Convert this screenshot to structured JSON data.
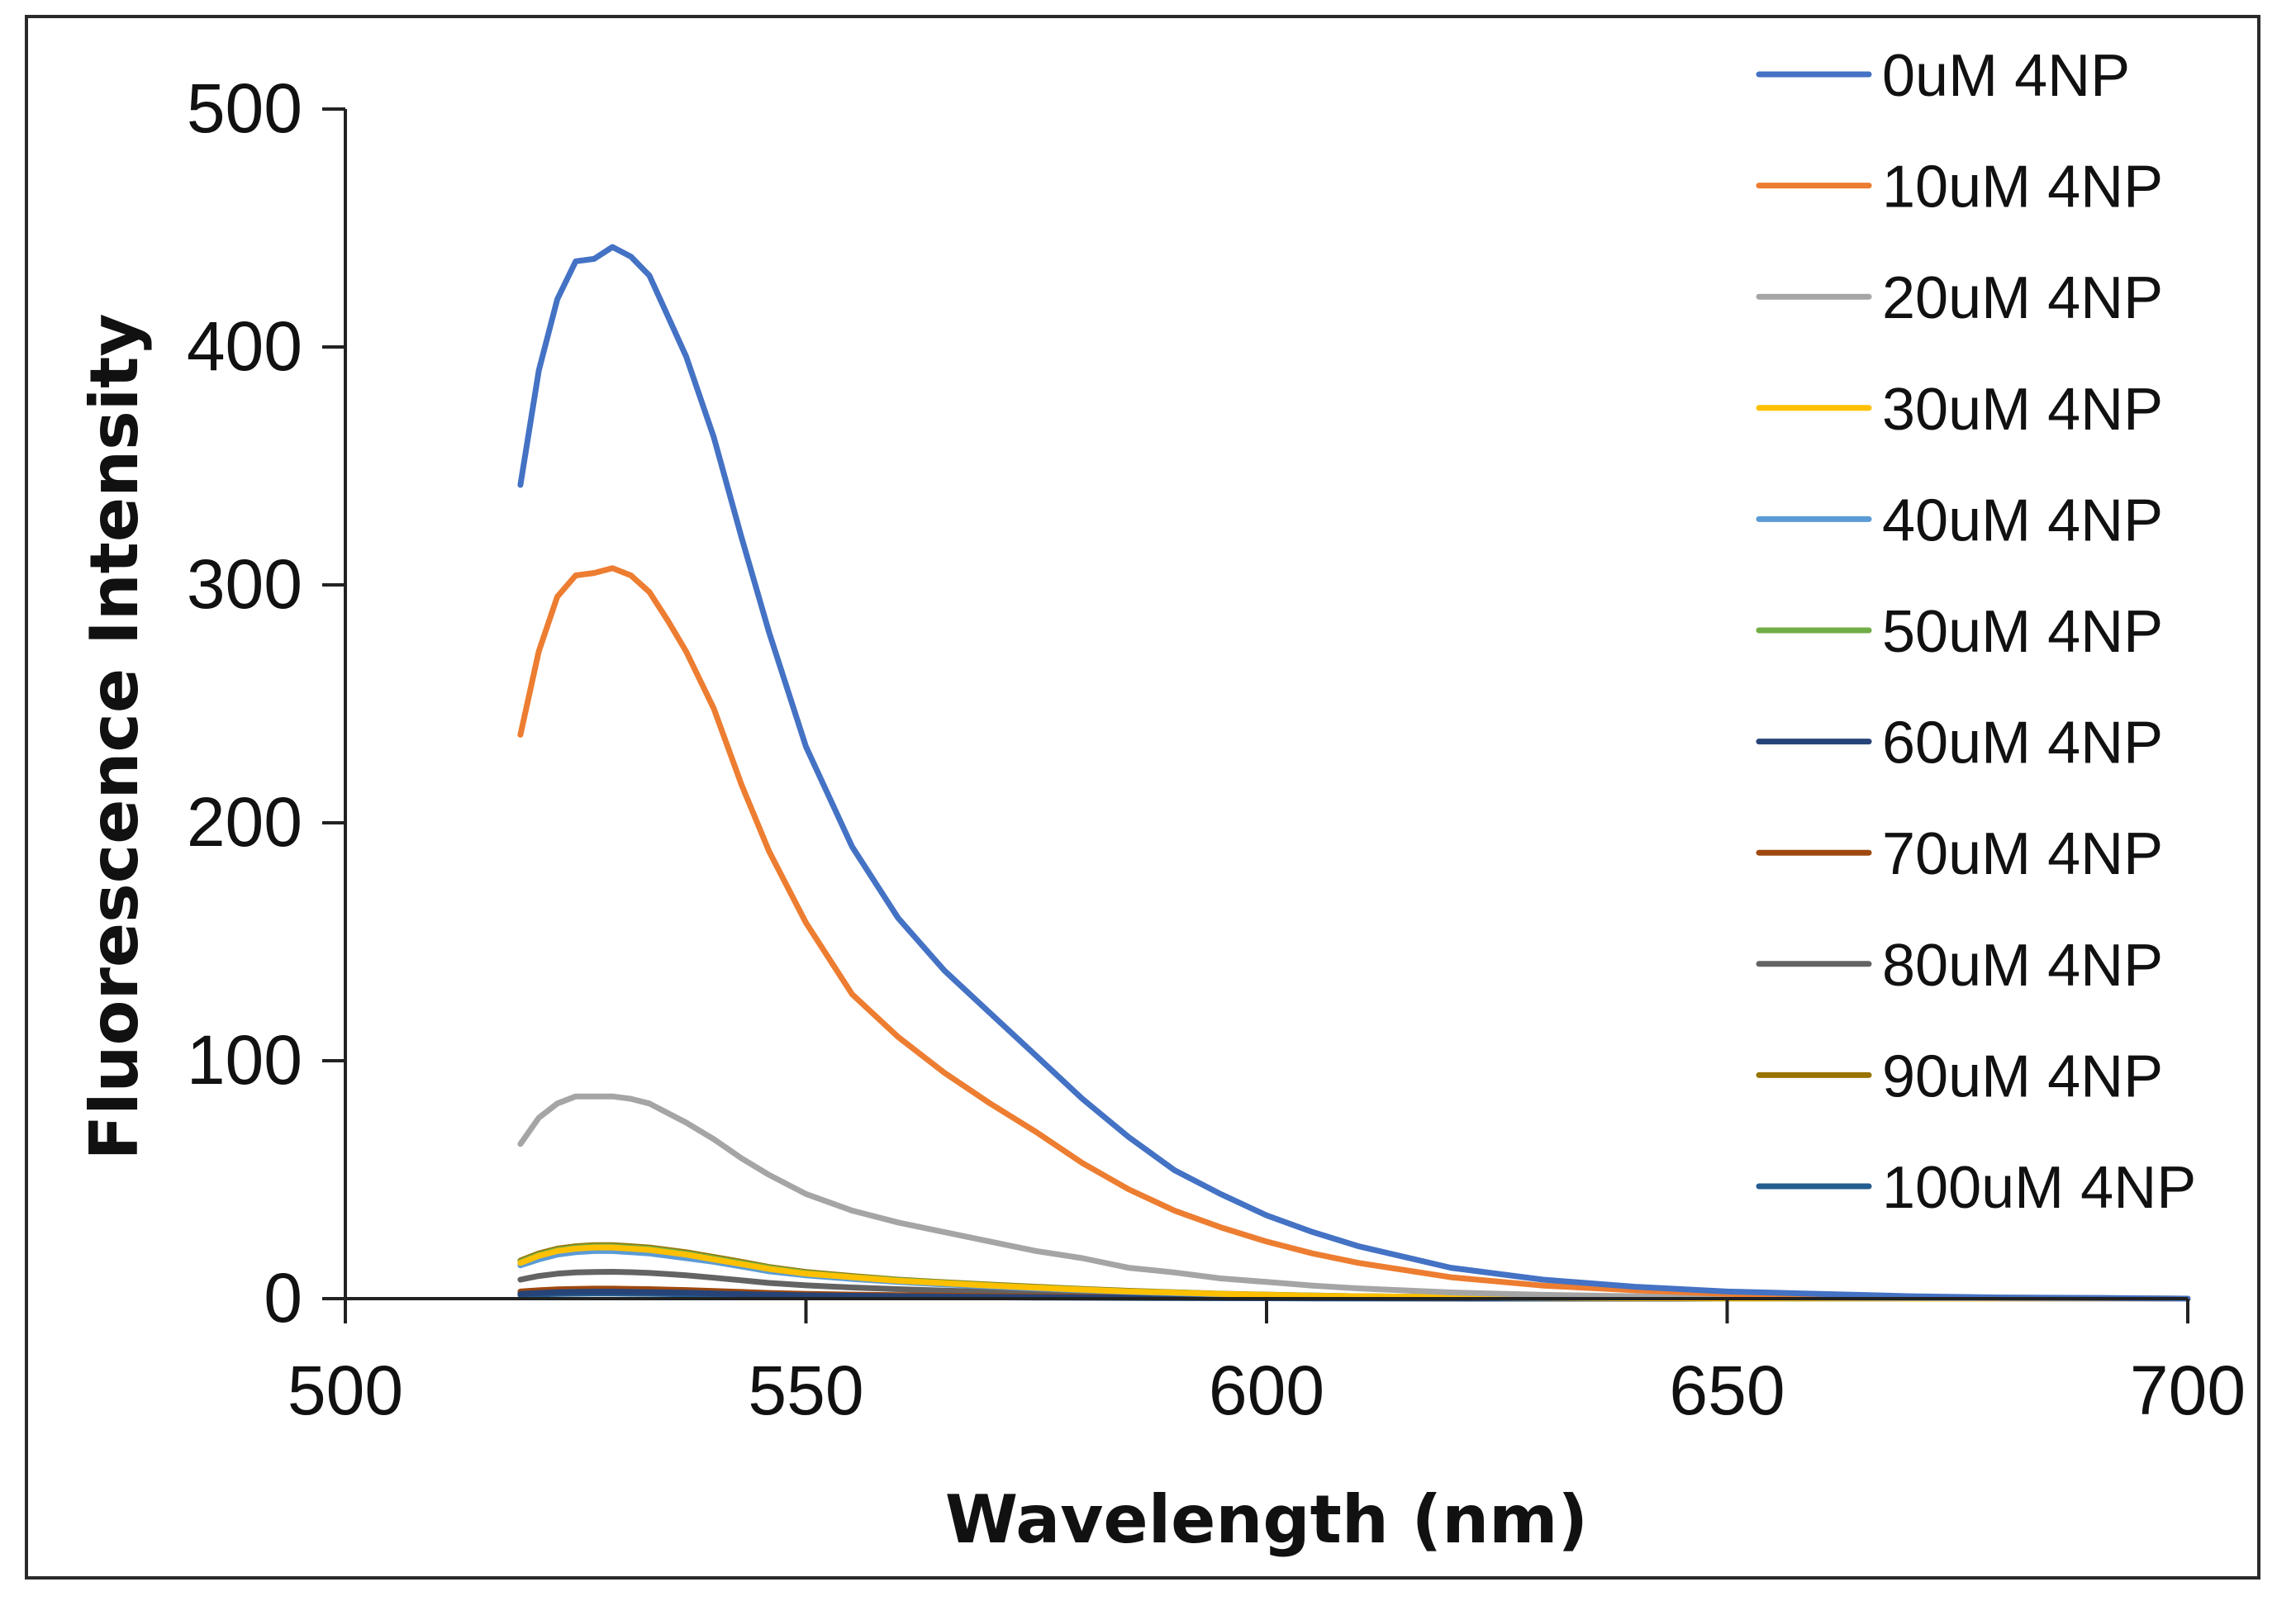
{
  "chart_data": {
    "type": "line",
    "title": "",
    "xlabel": "Wavelength (nm)",
    "ylabel": "Fluorescence Intensity",
    "xlim": [
      500,
      700
    ],
    "ylim": [
      0,
      500
    ],
    "xticks": [
      "500",
      "550",
      "600",
      "650",
      "700"
    ],
    "yticks": [
      "0",
      "100",
      "200",
      "300",
      "400",
      "500"
    ],
    "grid": false,
    "legend_position": "right",
    "x": [
      519,
      521,
      523,
      525,
      527,
      529,
      531,
      533,
      535,
      537,
      540,
      543,
      546,
      550,
      555,
      560,
      565,
      570,
      575,
      580,
      585,
      590,
      595,
      600,
      605,
      610,
      620,
      630,
      640,
      650,
      660,
      670,
      680,
      690,
      700
    ],
    "series": [
      {
        "name": "0uM 4NP",
        "color": "#4472C4",
        "values": [
          342,
          390,
          420,
          436,
          437,
          442,
          438,
          430,
          413,
          396,
          362,
          320,
          280,
          232,
          190,
          160,
          138,
          120,
          102,
          84,
          68,
          54,
          44,
          35,
          28,
          22,
          13,
          8,
          5,
          3,
          2,
          1,
          0.5,
          0.3,
          0
        ]
      },
      {
        "name": "10uM 4NP",
        "color": "#ED7D31",
        "values": [
          237,
          272,
          295,
          304,
          305,
          307,
          304,
          297,
          285,
          272,
          248,
          216,
          188,
          158,
          128,
          110,
          95,
          82,
          70,
          57,
          46,
          37,
          30,
          24,
          19,
          15,
          9,
          5.5,
          3.5,
          2,
          1.2,
          0.8,
          0.4,
          0.2,
          0
        ]
      },
      {
        "name": "20uM 4NP",
        "color": "#A5A5A5",
        "values": [
          65,
          76,
          82,
          85,
          85,
          85,
          84,
          82,
          78,
          74,
          67,
          59,
          52,
          44,
          37,
          32,
          28,
          24,
          20,
          17,
          13,
          11,
          8.5,
          7,
          5.5,
          4.3,
          2.6,
          1.6,
          1,
          0.6,
          0.4,
          0.2,
          0.1,
          0.05,
          0
        ]
      },
      {
        "name": "30uM 4NP",
        "color": "#FFC000",
        "values": [
          15,
          18,
          20,
          21,
          21.5,
          21.5,
          21,
          20.5,
          19.5,
          18.5,
          16.5,
          14.5,
          12.5,
          10.5,
          9,
          7.5,
          6.5,
          5.5,
          4.6,
          3.8,
          3,
          2.5,
          2,
          1.6,
          1.2,
          1,
          0.6,
          0.4,
          0.2,
          0.1,
          0.1,
          0,
          0,
          0,
          0
        ]
      },
      {
        "name": "40uM 4NP",
        "color": "#5B9BD5",
        "values": [
          14,
          16.5,
          18.5,
          19.5,
          20,
          20,
          19.5,
          19,
          18,
          17,
          15.5,
          13.5,
          11.5,
          9.8,
          8.3,
          7,
          6,
          5.1,
          4.3,
          3.5,
          2.8,
          2.3,
          1.8,
          1.5,
          1.2,
          0.9,
          0.55,
          0.35,
          0.2,
          0.1,
          0.1,
          0,
          0,
          0,
          0
        ]
      },
      {
        "name": "50uM 4NP",
        "color": "#70AD47",
        "values": [
          15.5,
          18.5,
          20.5,
          21.5,
          22,
          22,
          21.5,
          21,
          20,
          19,
          17,
          15,
          13,
          10.8,
          9.2,
          7.8,
          6.7,
          5.7,
          4.8,
          3.9,
          3.1,
          2.6,
          2,
          1.6,
          1.3,
          1,
          0.6,
          0.4,
          0.2,
          0.1,
          0.1,
          0,
          0,
          0,
          0
        ]
      },
      {
        "name": "60uM 4NP",
        "color": "#264478",
        "values": [
          2,
          2.4,
          2.7,
          2.8,
          2.9,
          2.9,
          2.8,
          2.7,
          2.6,
          2.5,
          2.2,
          1.9,
          1.7,
          1.4,
          1.2,
          1,
          0.85,
          0.7,
          0.6,
          0.5,
          0.4,
          0.33,
          0.26,
          0.2,
          0.16,
          0.13,
          0.08,
          0.05,
          0.03,
          0.02,
          0.01,
          0,
          0,
          0,
          0
        ]
      },
      {
        "name": "70uM 4NP",
        "color": "#9E480E",
        "values": [
          3,
          3.5,
          3.9,
          4.1,
          4.2,
          4.2,
          4.1,
          4,
          3.8,
          3.6,
          3.2,
          2.8,
          2.4,
          2,
          1.7,
          1.5,
          1.25,
          1.05,
          0.9,
          0.73,
          0.58,
          0.48,
          0.38,
          0.3,
          0.24,
          0.19,
          0.11,
          0.07,
          0.04,
          0.02,
          0.01,
          0,
          0,
          0,
          0
        ]
      },
      {
        "name": "80uM 4NP",
        "color": "#636363",
        "values": [
          8,
          9.5,
          10.5,
          11,
          11.2,
          11.3,
          11.1,
          10.8,
          10.3,
          9.8,
          8.8,
          7.7,
          6.6,
          5.6,
          4.7,
          4,
          3.4,
          2.9,
          2.45,
          2,
          1.6,
          1.3,
          1,
          0.82,
          0.65,
          0.5,
          0.31,
          0.19,
          0.11,
          0.06,
          0.03,
          0.02,
          0,
          0,
          0
        ]
      },
      {
        "name": "90uM 4NP",
        "color": "#997300",
        "values": [
          16,
          19,
          21,
          22,
          22.5,
          22.5,
          22,
          21.5,
          20.5,
          19.5,
          17.5,
          15.5,
          13.3,
          11.2,
          9.5,
          8,
          6.9,
          5.9,
          5,
          4.1,
          3.3,
          2.7,
          2.1,
          1.7,
          1.3,
          1,
          0.62,
          0.4,
          0.24,
          0.14,
          0.08,
          0.04,
          0.02,
          0,
          0
        ]
      },
      {
        "name": "100uM 4NP",
        "color": "#255E91",
        "values": [
          1.5,
          1.8,
          2,
          2.1,
          2.2,
          2.2,
          2.1,
          2.05,
          1.95,
          1.85,
          1.65,
          1.45,
          1.25,
          1.05,
          0.9,
          0.75,
          0.64,
          0.55,
          0.46,
          0.38,
          0.3,
          0.25,
          0.2,
          0.16,
          0.12,
          0.1,
          0.06,
          0.04,
          0.02,
          0.01,
          0,
          0,
          0,
          0,
          0
        ]
      }
    ]
  }
}
